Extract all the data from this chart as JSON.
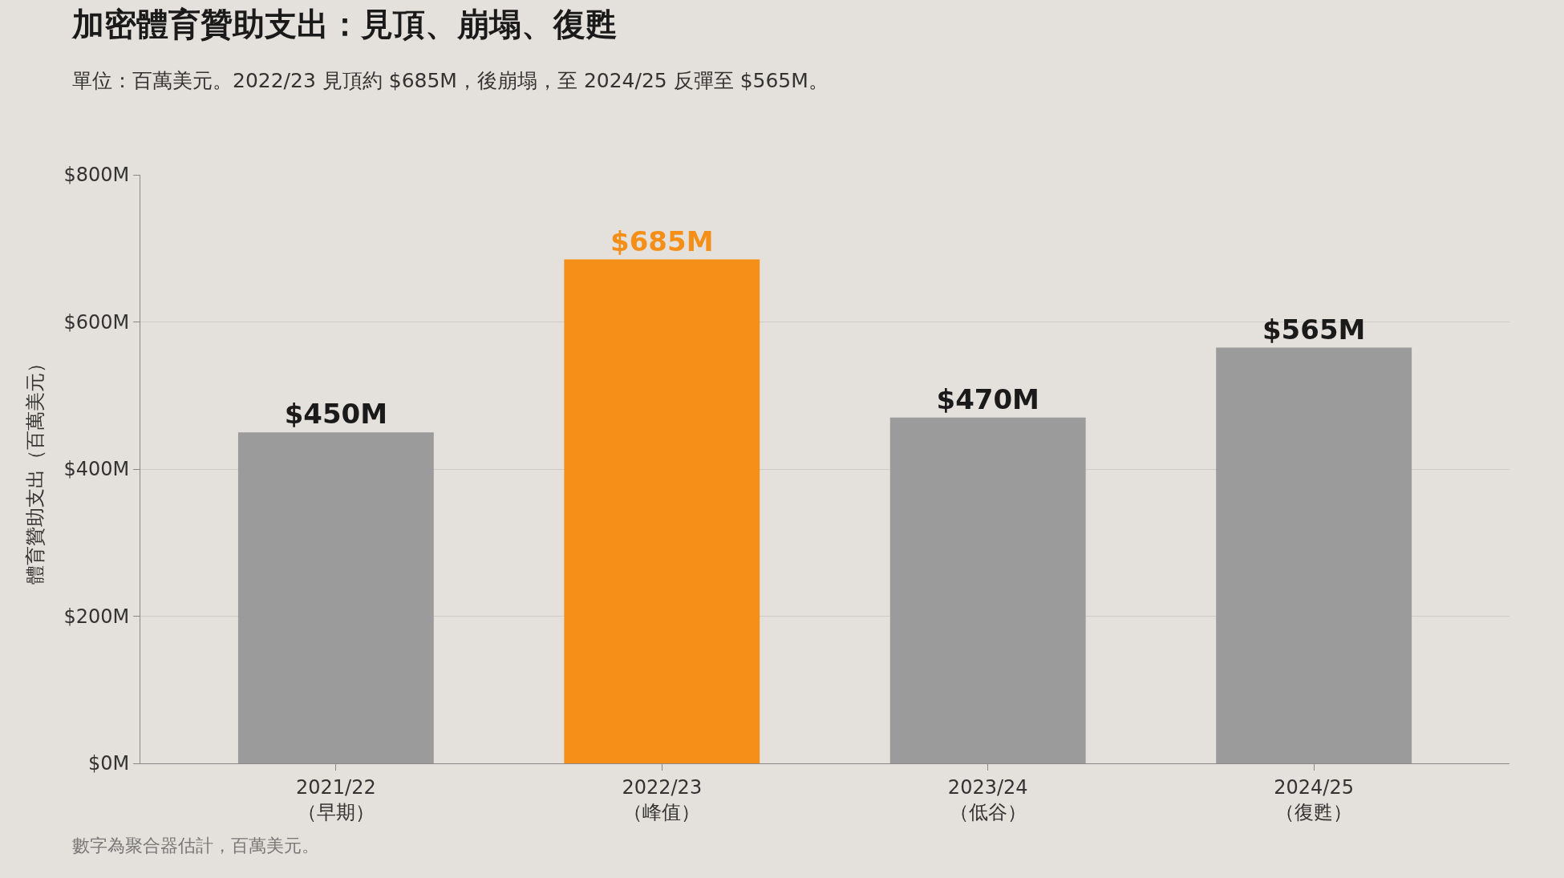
{
  "chart_data": {
    "type": "bar",
    "title": "加密體育贊助支出：見頂、崩塌、復甦",
    "subtitle": "單位：百萬美元。2022/23 見頂約 $685M，後崩塌，至 2024/25 反彈至 $565M。",
    "ylabel": "體育贊助支出（百萬美元）",
    "categories": [
      "2021/22\n（早期）",
      "2022/23\n（峰值）",
      "2023/24\n（低谷）",
      "2024/25\n（復甦）"
    ],
    "values": [
      450,
      685,
      470,
      565
    ],
    "colors": [
      "#9b9b9b",
      "#f58f17",
      "#9b9b9b",
      "#9b9b9b"
    ],
    "value_labels": [
      "$450M",
      "$685M",
      "$470M",
      "$565M"
    ],
    "ylim": [
      0,
      800
    ],
    "yticks": [
      {
        "value": 0,
        "label": "$0M"
      },
      {
        "value": 200,
        "label": "$200M"
      },
      {
        "value": 400,
        "label": "$400M"
      },
      {
        "value": 600,
        "label": "$600M"
      },
      {
        "value": 800,
        "label": "$800M"
      }
    ],
    "grid": "y",
    "annotations": [
      "數字為聚合器估計，百萬美元。"
    ]
  }
}
